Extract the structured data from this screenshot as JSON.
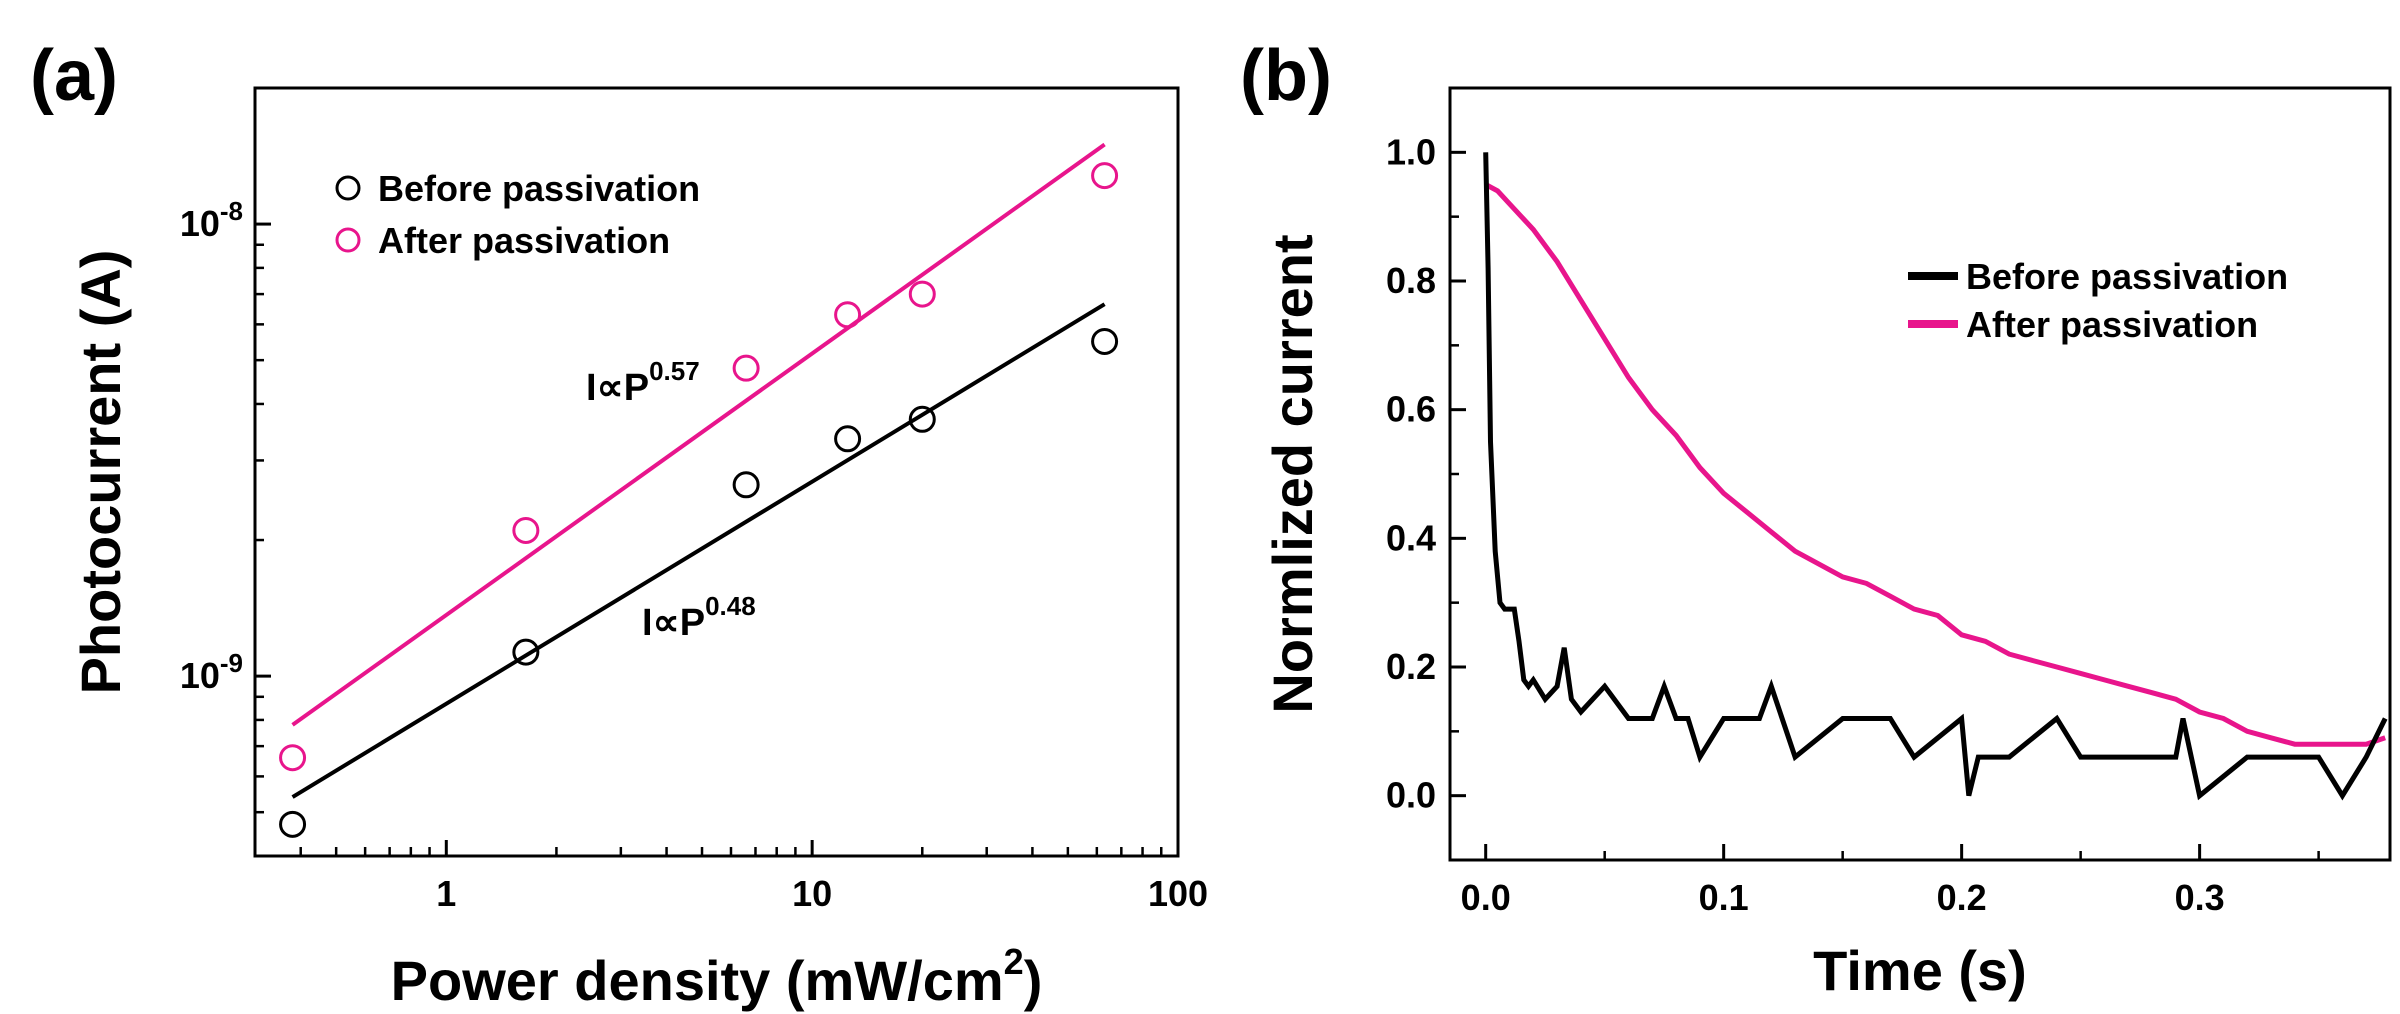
{
  "chart_data": [
    {
      "panel": "(a)",
      "type": "scatter",
      "xscale": "log",
      "yscale": "log",
      "xlabel": "Power density (mW/cm",
      "xlabel_sup": "2",
      "xlabel_close": ")",
      "ylabel": "Photocurrent (A)",
      "xlim": [
        0.3,
        100
      ],
      "ylim": [
        4e-10,
        2e-08
      ],
      "x_ticks": [
        {
          "value": 1,
          "label": "1"
        },
        {
          "value": 10,
          "label": "10"
        },
        {
          "value": 100,
          "label": "100"
        }
      ],
      "y_ticks": [
        {
          "value": 1e-09,
          "base": "10",
          "exp": "-9"
        },
        {
          "value": 1e-08,
          "base": "10",
          "exp": "-8"
        }
      ],
      "series": [
        {
          "name": "Before passivation",
          "color": "#000000",
          "points": [
            {
              "x": 0.38,
              "y": 4.7e-10
            },
            {
              "x": 1.65,
              "y": 1.13e-09
            },
            {
              "x": 6.6,
              "y": 2.65e-09
            },
            {
              "x": 12.5,
              "y": 3.35e-09
            },
            {
              "x": 20.0,
              "y": 3.7e-09
            },
            {
              "x": 63.0,
              "y": 5.5e-09
            }
          ],
          "fit": {
            "x": [
              0.38,
              63.0
            ],
            "y": [
              5.4e-10,
              6.65e-09
            ]
          }
        },
        {
          "name": "After passivation",
          "color": "#e8158c",
          "points": [
            {
              "x": 0.38,
              "y": 6.6e-10
            },
            {
              "x": 1.65,
              "y": 2.1e-09
            },
            {
              "x": 6.6,
              "y": 4.8e-09
            },
            {
              "x": 12.5,
              "y": 6.3e-09
            },
            {
              "x": 20.0,
              "y": 7e-09
            },
            {
              "x": 63.0,
              "y": 1.28e-08
            }
          ],
          "fit": {
            "x": [
              0.38,
              63.0
            ],
            "y": [
              7.8e-10,
              1.5e-08
            ]
          }
        }
      ],
      "annotations": [
        {
          "base": "I∝P",
          "sup": "0.57",
          "color": "#e8158c"
        },
        {
          "base": "I∝P",
          "sup": "0.48",
          "color": "#000000"
        }
      ],
      "legend": "top-left"
    },
    {
      "panel": "(b)",
      "type": "line",
      "xlabel": "Time (s)",
      "ylabel": "Normlized current",
      "xlim": [
        -0.015,
        0.38
      ],
      "ylim": [
        -0.1,
        1.1
      ],
      "x_ticks": [
        {
          "value": 0.0,
          "label": "0.0"
        },
        {
          "value": 0.1,
          "label": "0.1"
        },
        {
          "value": 0.2,
          "label": "0.2"
        },
        {
          "value": 0.3,
          "label": "0.3"
        }
      ],
      "y_ticks": [
        {
          "value": 0.0,
          "label": "0.0"
        },
        {
          "value": 0.2,
          "label": "0.2"
        },
        {
          "value": 0.4,
          "label": "0.4"
        },
        {
          "value": 0.6,
          "label": "0.6"
        },
        {
          "value": 0.8,
          "label": "0.8"
        },
        {
          "value": 1.0,
          "label": "1.0"
        }
      ],
      "series": [
        {
          "name": "Before passivation",
          "color": "#000000",
          "x": [
            0.0,
            0.001,
            0.002,
            0.004,
            0.006,
            0.008,
            0.012,
            0.014,
            0.016,
            0.018,
            0.02,
            0.025,
            0.03,
            0.033,
            0.036,
            0.04,
            0.05,
            0.06,
            0.07,
            0.075,
            0.08,
            0.085,
            0.09,
            0.1,
            0.115,
            0.12,
            0.13,
            0.15,
            0.17,
            0.18,
            0.2,
            0.203,
            0.207,
            0.22,
            0.24,
            0.25,
            0.27,
            0.29,
            0.293,
            0.3,
            0.32,
            0.35,
            0.36,
            0.37,
            0.378
          ],
          "y": [
            1.0,
            0.82,
            0.55,
            0.38,
            0.3,
            0.29,
            0.29,
            0.24,
            0.18,
            0.17,
            0.18,
            0.15,
            0.17,
            0.23,
            0.15,
            0.13,
            0.17,
            0.12,
            0.12,
            0.17,
            0.12,
            0.12,
            0.06,
            0.12,
            0.12,
            0.17,
            0.06,
            0.12,
            0.12,
            0.06,
            0.12,
            0.0,
            0.06,
            0.06,
            0.12,
            0.06,
            0.06,
            0.06,
            0.12,
            0.0,
            0.06,
            0.06,
            0.0,
            0.06,
            0.12
          ]
        },
        {
          "name": "After passivation",
          "color": "#e8158c",
          "x": [
            0.0,
            0.005,
            0.01,
            0.02,
            0.03,
            0.04,
            0.05,
            0.06,
            0.07,
            0.08,
            0.09,
            0.1,
            0.11,
            0.12,
            0.13,
            0.14,
            0.15,
            0.16,
            0.17,
            0.18,
            0.19,
            0.2,
            0.21,
            0.22,
            0.23,
            0.24,
            0.25,
            0.26,
            0.27,
            0.28,
            0.29,
            0.3,
            0.31,
            0.32,
            0.33,
            0.34,
            0.35,
            0.36,
            0.37,
            0.378
          ],
          "y": [
            0.95,
            0.94,
            0.92,
            0.88,
            0.83,
            0.77,
            0.71,
            0.65,
            0.6,
            0.56,
            0.51,
            0.47,
            0.44,
            0.41,
            0.38,
            0.36,
            0.34,
            0.33,
            0.31,
            0.29,
            0.28,
            0.25,
            0.24,
            0.22,
            0.21,
            0.2,
            0.19,
            0.18,
            0.17,
            0.16,
            0.15,
            0.13,
            0.12,
            0.1,
            0.09,
            0.08,
            0.08,
            0.08,
            0.08,
            0.09
          ]
        }
      ],
      "legend": "top-right"
    }
  ]
}
